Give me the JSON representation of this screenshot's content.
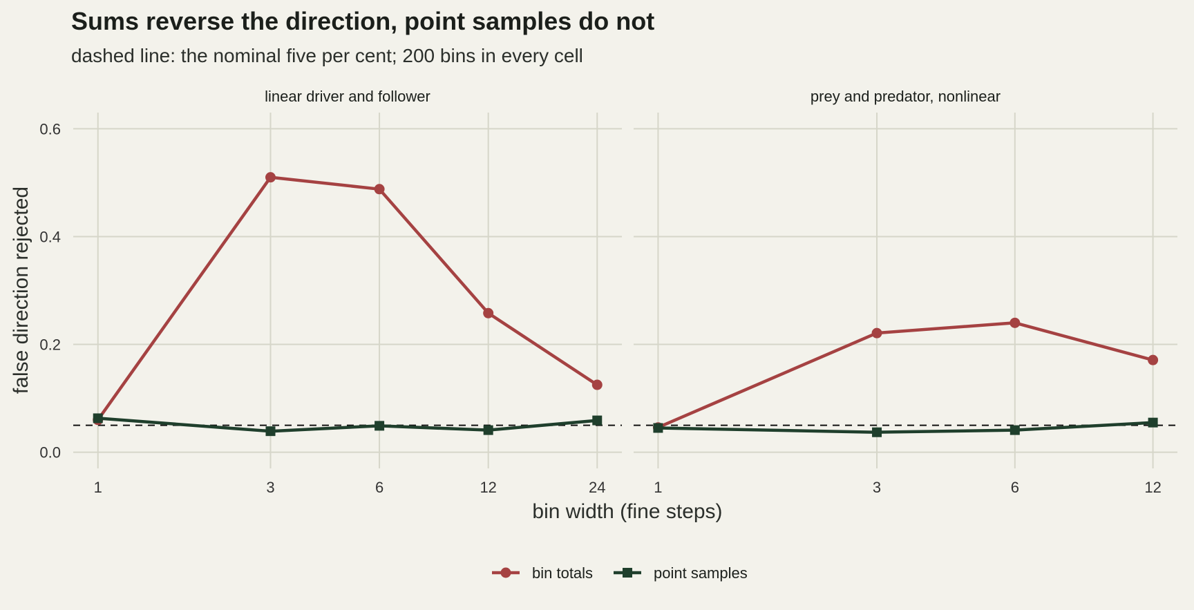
{
  "chart_data": {
    "type": "line",
    "title": "Sums reverse the direction, point samples do not",
    "subtitle": "dashed line: the nominal five per cent; 200 bins in every cell",
    "xlabel": "bin width (fine steps)",
    "ylabel": "false direction rejected",
    "x_scale": "log",
    "ylim": [
      -0.03,
      0.63
    ],
    "yticks": [
      0.0,
      0.2,
      0.4,
      0.6
    ],
    "ytick_labels": [
      "0.0",
      "0.2",
      "0.4",
      "0.6"
    ],
    "reference_line": 0.05,
    "grid": true,
    "legend_position": "bottom",
    "legend": [
      {
        "label": "bin totals",
        "color": "#a54242",
        "marker": "circle"
      },
      {
        "label": "point samples",
        "color": "#1f3f2c",
        "marker": "square"
      }
    ],
    "panels": [
      {
        "title": "linear driver and follower",
        "x": [
          1,
          3,
          6,
          12,
          24
        ],
        "xtick_labels": [
          "1",
          "3",
          "6",
          "12",
          "24"
        ],
        "series": [
          {
            "name": "bin totals",
            "color": "#a54242",
            "values": [
              0.06,
              0.51,
              0.488,
              0.258,
              0.125
            ]
          },
          {
            "name": "point samples",
            "color": "#1f3f2c",
            "values": [
              0.063,
              0.039,
              0.049,
              0.041,
              0.059
            ]
          }
        ]
      },
      {
        "title": "prey and predator, nonlinear",
        "x": [
          1,
          3,
          6,
          12
        ],
        "xtick_labels": [
          "1",
          "3",
          "6",
          "12"
        ],
        "series": [
          {
            "name": "bin totals",
            "color": "#a54242",
            "values": [
              0.046,
              0.221,
              0.24,
              0.171
            ]
          },
          {
            "name": "point samples",
            "color": "#1f3f2c",
            "values": [
              0.045,
              0.037,
              0.041,
              0.055
            ]
          }
        ]
      }
    ]
  }
}
